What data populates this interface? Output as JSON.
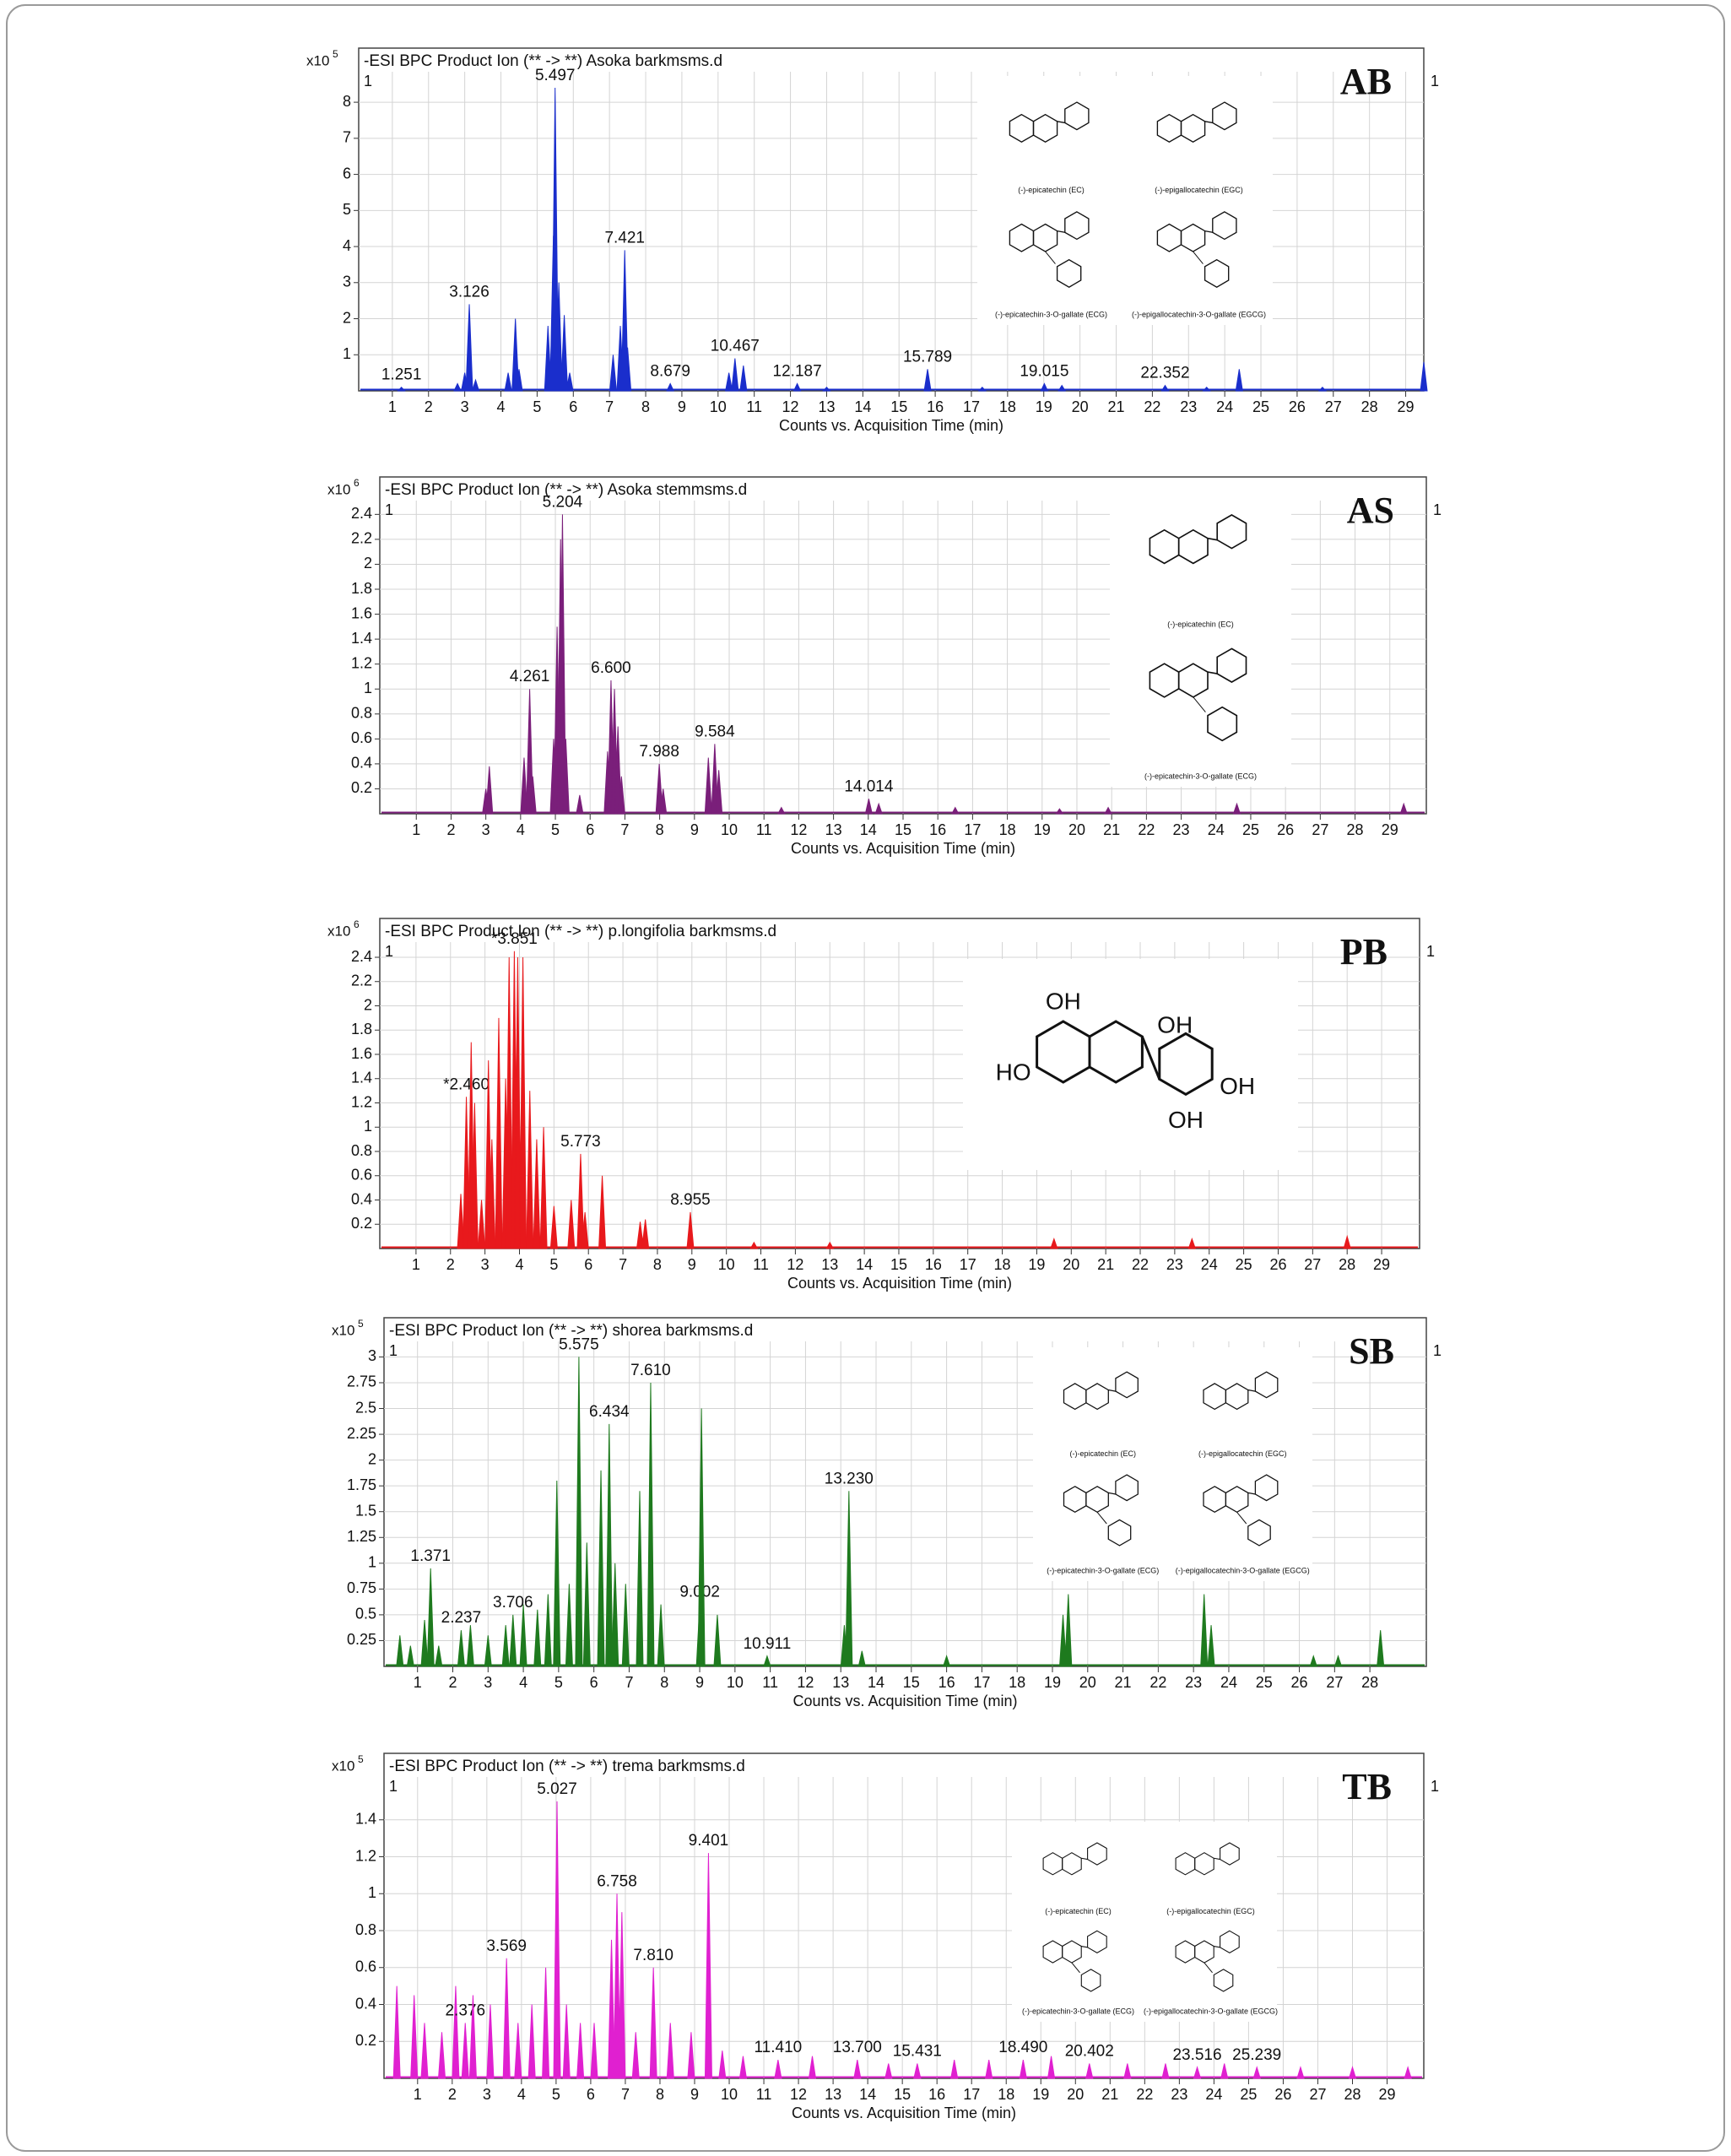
{
  "chart_data": [
    {
      "type": "spike",
      "title": "-ESI BPC Product Ion (** -> **) Asoka barkmsms.d",
      "panel_label": "AB",
      "scale_label": "x10",
      "scale_exponent": "5",
      "plot_index": "1",
      "x_label": "Counts vs. Acquisition Time (min)",
      "color": "#1a2ecc",
      "grid": true,
      "xlim": [
        0.07,
        29.5
      ],
      "xticks": [
        1,
        2,
        3,
        4,
        5,
        6,
        7,
        8,
        9,
        10,
        11,
        12,
        13,
        14,
        15,
        16,
        17,
        18,
        19,
        20,
        21,
        22,
        23,
        24,
        25,
        26,
        27,
        28,
        29
      ],
      "ylim": [
        0,
        9.5
      ],
      "yticks": [
        1,
        2,
        3,
        4,
        5,
        6,
        7,
        8
      ],
      "x": [
        1.251,
        2.8,
        3.0,
        3.126,
        3.3,
        4.2,
        4.4,
        4.5,
        5.3,
        5.45,
        5.497,
        5.6,
        5.75,
        5.9,
        7.1,
        7.3,
        7.421,
        7.5,
        8.679,
        10.3,
        10.467,
        10.7,
        12.187,
        13.0,
        15.789,
        17.3,
        19.015,
        19.5,
        22.352,
        23.5,
        24.4,
        26.7,
        29.5
      ],
      "values": [
        0.1,
        0.2,
        0.5,
        2.4,
        0.3,
        0.5,
        2.0,
        0.6,
        1.8,
        4.3,
        8.4,
        3.0,
        2.1,
        0.5,
        1.0,
        1.8,
        3.9,
        1.2,
        0.2,
        0.5,
        0.9,
        0.7,
        0.2,
        0.1,
        0.6,
        0.1,
        0.2,
        0.15,
        0.15,
        0.1,
        0.6,
        0.1,
        0.8
      ],
      "labels": [
        "1.251",
        null,
        null,
        "3.126",
        null,
        null,
        null,
        null,
        null,
        null,
        "5.497",
        null,
        null,
        null,
        null,
        null,
        "7.421",
        null,
        "8.679",
        null,
        "10.467",
        null,
        "12.187",
        null,
        "15.789",
        null,
        "19.015",
        null,
        "22.352",
        null,
        null,
        null,
        null
      ],
      "inset": {
        "captions": [
          "(-)-epicatechin (EC)",
          "(-)-epigallocatechin (EGC)",
          "(-)-epicatechin-3-O-gallate (ECG)",
          "(-)-epigallocatechin-3-O-gallate (EGCG)"
        ]
      }
    },
    {
      "type": "spike",
      "title": "-ESI BPC Product Ion (** -> **) Asoka stemmsms.d",
      "panel_label": "AS",
      "scale_label": "x10",
      "scale_exponent": "6",
      "plot_index": "1",
      "x_label": "Counts vs. Acquisition Time (min)",
      "color": "#7a1f7a",
      "grid": true,
      "xlim": [
        -0.05,
        30.05
      ],
      "xticks": [
        1,
        2,
        3,
        4,
        5,
        6,
        7,
        8,
        9,
        10,
        11,
        12,
        13,
        14,
        15,
        16,
        17,
        18,
        19,
        20,
        21,
        22,
        23,
        24,
        25,
        26,
        27,
        28,
        29
      ],
      "ylim": [
        0,
        2.7
      ],
      "yticks": [
        0.2,
        0.4,
        0.6,
        0.8,
        1,
        1.2,
        1.4,
        1.6,
        1.8,
        2,
        2.2,
        2.4
      ],
      "x": [
        3.0,
        3.1,
        4.1,
        4.261,
        4.35,
        4.95,
        5.05,
        5.15,
        5.204,
        5.3,
        5.7,
        6.5,
        6.6,
        6.7,
        6.8,
        6.9,
        7.988,
        8.1,
        9.4,
        9.584,
        9.7,
        11.5,
        14.014,
        14.3,
        16.5,
        19.5,
        20.9,
        24.6,
        29.4
      ],
      "values": [
        0.2,
        0.38,
        0.45,
        1.0,
        0.3,
        0.6,
        1.5,
        2.2,
        2.4,
        0.6,
        0.15,
        0.5,
        1.07,
        1.0,
        0.7,
        0.3,
        0.4,
        0.2,
        0.45,
        0.56,
        0.35,
        0.05,
        0.12,
        0.08,
        0.05,
        0.04,
        0.05,
        0.08,
        0.08
      ],
      "labels": [
        null,
        null,
        null,
        "4.261",
        null,
        null,
        null,
        null,
        "5.204",
        null,
        null,
        null,
        "6.600",
        null,
        null,
        null,
        "7.988",
        null,
        null,
        "9.584",
        null,
        null,
        "14.014",
        null,
        null,
        null,
        null,
        null,
        null
      ],
      "inset": {
        "captions": [
          "(-)-epicatechin (EC)",
          "(-)-epicatechin-3-O-gallate (ECG)"
        ]
      }
    },
    {
      "type": "spike",
      "title": "-ESI BPC Product Ion (** -> **) p.longifolia barkmsms.d",
      "panel_label": "PB",
      "scale_label": "x10",
      "scale_exponent": "6",
      "plot_index": "1",
      "x_label": "Counts vs. Acquisition Time (min)",
      "color": "#e8191c",
      "grid": true,
      "xlim": [
        -0.05,
        30.1
      ],
      "xticks": [
        1,
        2,
        3,
        4,
        5,
        6,
        7,
        8,
        9,
        10,
        11,
        12,
        13,
        14,
        15,
        16,
        17,
        18,
        19,
        20,
        21,
        22,
        23,
        24,
        25,
        26,
        27,
        28,
        29
      ],
      "ylim": [
        0,
        2.72
      ],
      "yticks": [
        0.2,
        0.4,
        0.6,
        0.8,
        1,
        1.2,
        1.4,
        1.6,
        1.8,
        2,
        2.2,
        2.4
      ],
      "x": [
        2.3,
        2.46,
        2.6,
        2.7,
        2.9,
        3.1,
        3.2,
        3.4,
        3.6,
        3.7,
        3.851,
        3.95,
        4.1,
        4.3,
        4.5,
        4.7,
        5.0,
        5.5,
        5.773,
        5.9,
        6.4,
        7.5,
        7.65,
        8.955,
        10.8,
        13.0,
        19.5,
        23.5,
        28.0
      ],
      "values": [
        0.45,
        1.25,
        1.7,
        1.2,
        0.4,
        1.55,
        0.9,
        1.9,
        1.4,
        2.4,
        2.45,
        2.4,
        2.4,
        1.3,
        0.9,
        1.0,
        0.35,
        0.4,
        0.78,
        0.3,
        0.6,
        0.22,
        0.24,
        0.3,
        0.05,
        0.05,
        0.08,
        0.08,
        0.1
      ],
      "labels": [
        null,
        "*2.460",
        null,
        null,
        null,
        null,
        null,
        null,
        null,
        null,
        "*3.851",
        null,
        null,
        null,
        null,
        null,
        null,
        null,
        "5.773",
        null,
        null,
        null,
        null,
        "8.955",
        null,
        null,
        null,
        null,
        null
      ],
      "inset": {
        "atoms": [
          "OH",
          "OH",
          "HO",
          "OH",
          "OH"
        ]
      }
    },
    {
      "type": "spike",
      "title": "-ESI BPC Product Ion (** -> **) shorea barkmsms.d",
      "panel_label": "SB",
      "scale_label": "x10",
      "scale_exponent": "5",
      "plot_index": "1",
      "x_label": "Counts vs. Acquisition Time (min)",
      "color": "#1e7a1e",
      "grid": true,
      "xlim": [
        0.05,
        29.6
      ],
      "xticks": [
        1,
        2,
        3,
        4,
        5,
        6,
        7,
        8,
        9,
        10,
        11,
        12,
        13,
        14,
        15,
        16,
        17,
        18,
        19,
        20,
        21,
        22,
        23,
        24,
        25,
        26,
        27,
        28
      ],
      "ylim": [
        0,
        3.38
      ],
      "yticks": [
        0.25,
        0.5,
        0.75,
        1,
        1.25,
        1.5,
        1.75,
        2,
        2.25,
        2.5,
        2.75,
        3
      ],
      "x": [
        0.5,
        0.8,
        1.2,
        1.371,
        1.6,
        2.237,
        2.5,
        3.0,
        3.5,
        3.706,
        4.0,
        4.4,
        4.7,
        4.95,
        5.3,
        5.575,
        5.8,
        6.2,
        6.434,
        6.6,
        6.9,
        7.3,
        7.61,
        7.9,
        9.002,
        9.05,
        9.5,
        10.911,
        13.1,
        13.23,
        13.6,
        16.0,
        19.3,
        19.45,
        23.3,
        23.5,
        26.4,
        27.1,
        28.3
      ],
      "values": [
        0.3,
        0.2,
        0.45,
        0.95,
        0.2,
        0.35,
        0.4,
        0.3,
        0.4,
        0.5,
        0.6,
        0.55,
        0.7,
        1.8,
        0.8,
        3.0,
        1.2,
        1.9,
        2.35,
        1.0,
        0.8,
        1.7,
        2.75,
        0.6,
        0.6,
        2.5,
        0.5,
        0.1,
        0.4,
        1.7,
        0.15,
        0.1,
        0.5,
        0.7,
        0.7,
        0.4,
        0.1,
        0.1,
        0.35
      ],
      "labels": [
        null,
        null,
        null,
        "1.371",
        null,
        "2.237",
        null,
        null,
        null,
        "3.706",
        null,
        null,
        null,
        null,
        null,
        "5.575",
        null,
        null,
        "6.434",
        null,
        null,
        null,
        "7.610",
        null,
        "9.002",
        null,
        null,
        "10.911",
        null,
        "13.230",
        null,
        null,
        null,
        null,
        null,
        null,
        null,
        null,
        null
      ],
      "inset": {
        "captions": [
          "(-)-epicatechin (EC)",
          "(-)-epigallocatechin (EGC)",
          "(-)-epicatechin-3-O-gallate (ECG)",
          "(-)-epigallocatechin-3-O-gallate (EGCG)"
        ]
      }
    },
    {
      "type": "spike",
      "title": "-ESI BPC Product Ion (** -> **) trema barkmsms.d",
      "panel_label": "TB",
      "scale_label": "x10",
      "scale_exponent": "5",
      "plot_index": "1",
      "x_label": "Counts vs. Acquisition Time (min)",
      "color": "#e020d0",
      "grid": true,
      "xlim": [
        0.03,
        30.06
      ],
      "xticks": [
        1,
        2,
        3,
        4,
        5,
        6,
        7,
        8,
        9,
        10,
        11,
        12,
        13,
        14,
        15,
        16,
        17,
        18,
        19,
        20,
        21,
        22,
        23,
        24,
        25,
        26,
        27,
        28,
        29
      ],
      "ylim": [
        0,
        1.76
      ],
      "yticks": [
        0.2,
        0.4,
        0.6,
        0.8,
        1,
        1.2,
        1.4
      ],
      "x": [
        0.4,
        0.9,
        1.2,
        1.7,
        2.1,
        2.376,
        2.6,
        3.1,
        3.569,
        3.9,
        4.3,
        4.7,
        5.027,
        5.3,
        5.7,
        6.1,
        6.6,
        6.758,
        6.9,
        7.3,
        7.81,
        8.3,
        8.9,
        9.401,
        9.8,
        10.4,
        11.41,
        12.4,
        13.7,
        14.6,
        15.431,
        16.5,
        17.5,
        18.49,
        19.3,
        20.402,
        21.5,
        22.6,
        23.516,
        24.3,
        25.239,
        26.5,
        28.0,
        29.6
      ],
      "values": [
        0.5,
        0.45,
        0.3,
        0.25,
        0.5,
        0.3,
        0.45,
        0.4,
        0.65,
        0.3,
        0.4,
        0.6,
        1.5,
        0.4,
        0.3,
        0.3,
        0.75,
        1.0,
        0.9,
        0.25,
        0.6,
        0.3,
        0.25,
        1.22,
        0.15,
        0.12,
        0.1,
        0.12,
        0.1,
        0.08,
        0.08,
        0.1,
        0.1,
        0.1,
        0.12,
        0.08,
        0.08,
        0.08,
        0.06,
        0.08,
        0.06,
        0.06,
        0.06,
        0.06
      ],
      "labels": [
        null,
        null,
        null,
        null,
        null,
        "2.376",
        null,
        null,
        "3.569",
        null,
        null,
        null,
        "5.027",
        null,
        null,
        null,
        null,
        "6.758",
        null,
        null,
        "7.810",
        null,
        null,
        "9.401",
        null,
        null,
        "11.410",
        null,
        "13.700",
        null,
        "15.431",
        null,
        null,
        "18.490",
        null,
        "20.402",
        null,
        null,
        "23.516",
        null,
        "25.239",
        null,
        null,
        null
      ],
      "inset": {
        "captions": [
          "(-)-epicatechin (EC)",
          "(-)-epigallocatechin (EGC)",
          "(-)-epicatechin-3-O-gallate (ECG)",
          "(-)-epigallocatechin-3-O-gallate (EGCG)"
        ]
      }
    }
  ]
}
